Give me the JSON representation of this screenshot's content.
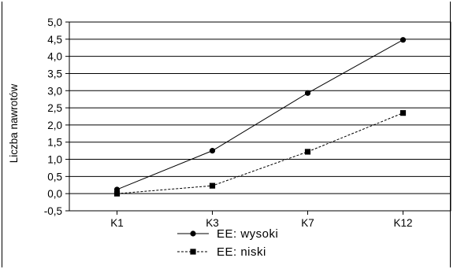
{
  "chart_data": {
    "type": "line",
    "categories": [
      "K1",
      "K3",
      "K7",
      "K12"
    ],
    "ylabel": "Liczba nawrotów",
    "xlabel": "",
    "ylim": [
      -0.5,
      5.0
    ],
    "yticks": [
      "-0,5",
      "0,0",
      "0,5",
      "1,0",
      "1,5",
      "2,0",
      "2,5",
      "3,0",
      "3,5",
      "4,0",
      "4,5",
      "5,0"
    ],
    "grid": true,
    "legend_position": "bottom",
    "series": [
      {
        "name": "EE: wysoki",
        "values": [
          0.12,
          1.25,
          2.93,
          4.48
        ],
        "marker": "circle",
        "line": "solid",
        "color": "#000000"
      },
      {
        "name": "EE: niski",
        "values": [
          0.0,
          0.23,
          1.22,
          2.35
        ],
        "marker": "square",
        "line": "dashed",
        "color": "#000000"
      }
    ]
  }
}
